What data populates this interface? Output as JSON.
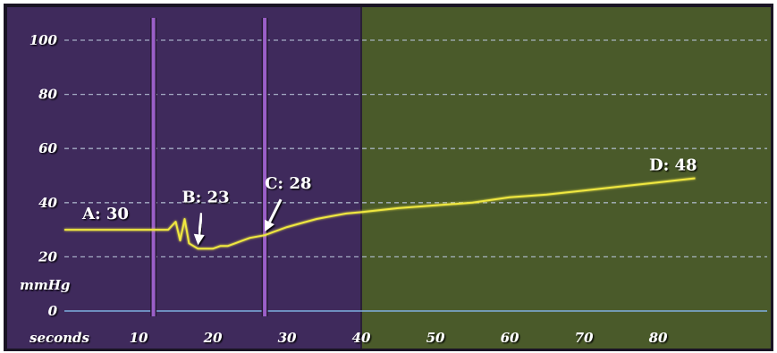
{
  "chart_data": {
    "type": "line",
    "title": "",
    "xlabel": "seconds",
    "ylabel": "mmHg",
    "xlim": [
      0,
      85
    ],
    "ylim": [
      0,
      105
    ],
    "x_ticks": [
      10,
      20,
      30,
      40,
      50,
      60,
      70,
      80
    ],
    "y_ticks": [
      0,
      20,
      40,
      60,
      80,
      100
    ],
    "grid": "horizontal dashed",
    "phase_colors": {
      "before_40s": "#3f2a5c",
      "after_40s": "#4a5a2a"
    },
    "line_color": "#f0e840",
    "marker_lines_x": [
      12,
      27
    ],
    "marker_line_color": "#9a5fc8",
    "series": [
      {
        "x": [
          0,
          12,
          14,
          15,
          15.6,
          16.2,
          16.8,
          17.4,
          18,
          19,
          20,
          21,
          22,
          23,
          24,
          25,
          26,
          27,
          28,
          29,
          30,
          32,
          34,
          36,
          38,
          40,
          45,
          50,
          55,
          60,
          65,
          70,
          75,
          80,
          85
        ],
        "y": [
          30,
          30,
          30,
          33,
          26,
          34,
          25,
          24,
          23,
          23,
          23,
          24,
          24,
          25,
          26,
          27,
          27.5,
          28,
          29,
          30,
          31,
          32.5,
          34,
          35,
          36,
          36.5,
          38,
          39,
          40,
          42,
          43,
          44.5,
          46,
          47.5,
          49
        ]
      }
    ],
    "annotations": [
      {
        "label": "A: 30",
        "x": 0,
        "y": 30,
        "arrow": false
      },
      {
        "label": "B: 23",
        "x": 18,
        "y": 23,
        "arrow": true
      },
      {
        "label": "C: 28",
        "x": 27,
        "y": 28,
        "arrow": true
      },
      {
        "label": "D: 48",
        "x": 80,
        "y": 48,
        "arrow": false
      }
    ]
  }
}
